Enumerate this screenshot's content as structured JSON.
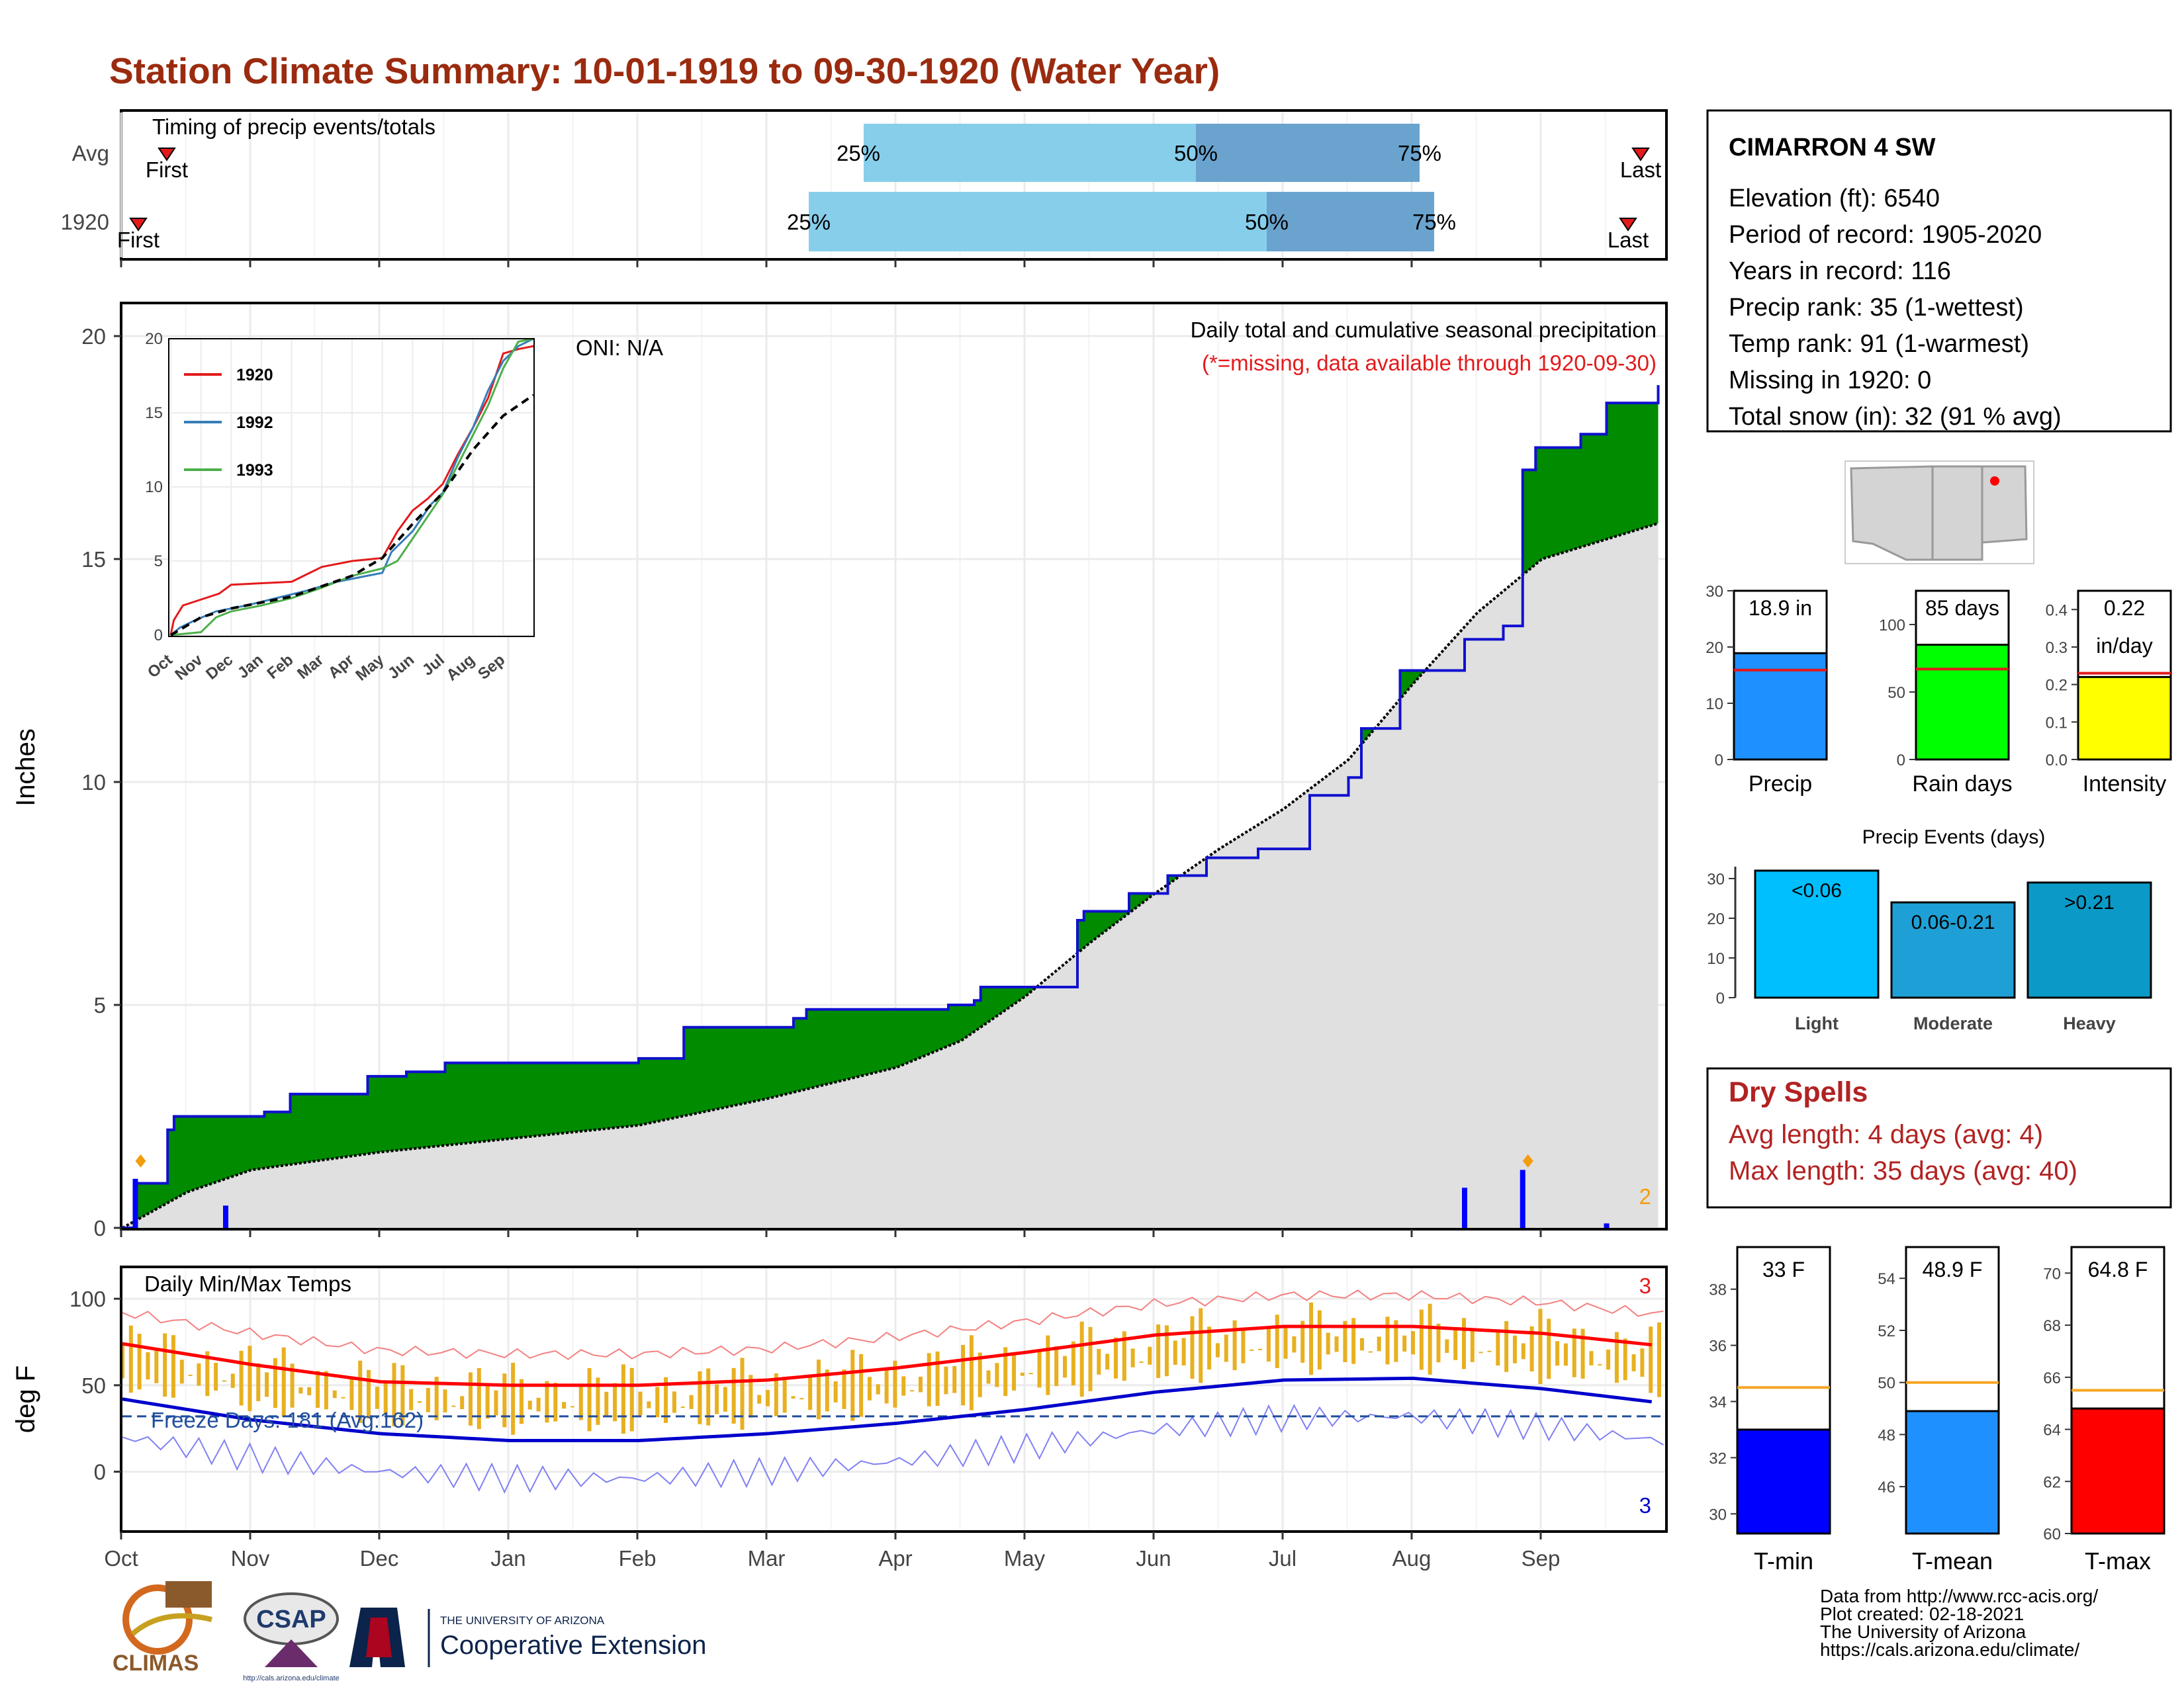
{
  "title": "Station Climate Summary: 10-01-1919 to 09-30-1920 (Water Year)",
  "months": [
    "Oct",
    "Nov",
    "Dec",
    "Jan",
    "Feb",
    "Mar",
    "Apr",
    "May",
    "Jun",
    "Jul",
    "Aug",
    "Sep"
  ],
  "timing": {
    "label": "Timing of precip events/totals",
    "rows": [
      {
        "name": "Avg",
        "first_label": "First",
        "last_label": "Last",
        "p25": "25%",
        "p50": "50%",
        "p75": "75%"
      },
      {
        "name": "1920",
        "first_label": "First",
        "last_label": "Last",
        "p25": "25%",
        "p50": "50%",
        "p75": "75%"
      }
    ]
  },
  "precip_panel": {
    "ylabel": "Inches",
    "oni": "ONI: N/A",
    "subtitle": "Daily total and cumulative seasonal precipitation",
    "missing_note": "(*=missing, data available through 1920-09-30)",
    "extreme_count": "2",
    "yticks": [
      "0",
      "5",
      "10",
      "15",
      "20"
    ]
  },
  "inset": {
    "months": [
      "Oct",
      "Nov",
      "Dec",
      "Jan",
      "Feb",
      "Mar",
      "Apr",
      "May",
      "Jun",
      "Jul",
      "Aug",
      "Sep"
    ],
    "yticks": [
      "0",
      "5",
      "10",
      "15",
      "20"
    ],
    "legend": [
      {
        "name": "1920",
        "color": "#e31a1c"
      },
      {
        "name": "1992",
        "color": "#377eb8"
      },
      {
        "name": "1993",
        "color": "#4daf4a"
      }
    ]
  },
  "temp_panel": {
    "ylabel": "deg F",
    "label": "Daily Min/Max Temps",
    "freeze_text": "Freeze Days: 181 (Avg:162)",
    "max_count": "3",
    "min_count": "3",
    "yticks": [
      "0",
      "50",
      "100"
    ]
  },
  "station": {
    "name": "CIMARRON 4 SW",
    "lines": [
      "Elevation (ft): 6540",
      "Period of record: 1905-2020",
      "Years in record: 116",
      "Precip rank: 35 (1-wettest)",
      "Temp rank: 91 (1-warmest)",
      "Missing in 1920: 0",
      "Total snow (in): 32 (91 % avg)"
    ]
  },
  "mini_bars": [
    {
      "name": "Precip",
      "value_label": "18.9 in",
      "value": 18.9,
      "avg": 15.9,
      "ymax": 30,
      "color": "#1e90ff",
      "yticks": [
        "0",
        "10",
        "20",
        "30"
      ]
    },
    {
      "name": "Rain days",
      "value_label": "85 days",
      "value": 85,
      "avg": 67,
      "ymax": 125,
      "color": "#00ff00",
      "yticks": [
        "0",
        "50",
        "100"
      ]
    },
    {
      "name": "Intensity",
      "value_label": "0.22",
      "value_label2": "in/day",
      "value": 0.22,
      "avg": 0.23,
      "ymax": 0.45,
      "color": "#ffff00",
      "yticks": [
        "0.0",
        "0.1",
        "0.2",
        "0.3",
        "0.4"
      ]
    }
  ],
  "events": {
    "title": "Precip Events (days)",
    "yticks": [
      "0",
      "10",
      "20",
      "30"
    ],
    "bars": [
      {
        "name": "Light",
        "label": "<0.06",
        "value": 32,
        "color": "#00bfff"
      },
      {
        "name": "Moderate",
        "label": "0.06-0.21",
        "value": 24,
        "color": "#1ea0d6"
      },
      {
        "name": "Heavy",
        "label": ">0.21",
        "value": 29,
        "color": "#0b9ac8"
      }
    ]
  },
  "dry_spells": {
    "title": "Dry Spells",
    "lines": [
      "Avg length: 4 days (avg: 4)",
      "Max length: 35 days (avg: 40)"
    ]
  },
  "temp_bars": [
    {
      "name": "T-min",
      "value_label": "33 F",
      "value": 33,
      "avg": 34.5,
      "ymin": 29.3,
      "ymax": 39.5,
      "color": "#0000ff",
      "yticks": [
        "30",
        "32",
        "34",
        "36",
        "38"
      ]
    },
    {
      "name": "T-mean",
      "value_label": "48.9 F",
      "value": 48.9,
      "avg": 50,
      "ymin": 44.2,
      "ymax": 55.2,
      "color": "#1e90ff",
      "yticks": [
        "46",
        "48",
        "50",
        "52",
        "54"
      ]
    },
    {
      "name": "T-max",
      "value_label": "64.8 F",
      "value": 64.8,
      "avg": 65.5,
      "ymin": 60,
      "ymax": 71,
      "color": "#ff0000",
      "yticks": [
        "60",
        "62",
        "64",
        "66",
        "68",
        "70"
      ]
    }
  ],
  "footer": {
    "lines": [
      "Data from http://www.rcc-acis.org/",
      "Plot created: 02-18-2021",
      "The University of Arizona",
      "https://cals.arizona.edu/climate/"
    ]
  },
  "logos": {
    "climas": "CLIMAS",
    "csap": "CSAP",
    "csap_url": "http://cals.arizona.edu/climate",
    "ua_top": "THE UNIVERSITY OF ARIZONA",
    "ua_bottom": "Cooperative Extension"
  },
  "chart_data": [
    {
      "type": "area",
      "title": "Daily total and cumulative seasonal precipitation",
      "ylabel": "Inches",
      "ylim": [
        0,
        20.5
      ],
      "x_unit": "month (water year, Oct=0)",
      "series": [
        {
          "name": "1920",
          "x": [
            0,
            0.1,
            0.18,
            0.35,
            0.4,
            1.1,
            1.3,
            1.9,
            2.2,
            2.5,
            3,
            3.5,
            4,
            4.35,
            4.5,
            5.2,
            5.3,
            5.5,
            6,
            6.4,
            6.6,
            6.65,
            7,
            7.4,
            7.45,
            7.8,
            8.1,
            8.4,
            8.8,
            9.2,
            9.5,
            9.6,
            9.9,
            10.4,
            10.7,
            10.85,
            10.95,
            11.3,
            11.5,
            11.9
          ],
          "y": [
            0,
            1.0,
            1.0,
            2.2,
            2.5,
            2.6,
            3.0,
            3.4,
            3.5,
            3.7,
            3.7,
            3.7,
            3.8,
            4.5,
            4.5,
            4.7,
            4.9,
            4.9,
            4.9,
            5.0,
            5.1,
            5.4,
            5.4,
            6.9,
            7.1,
            7.5,
            7.9,
            8.3,
            8.5,
            9.7,
            10.1,
            11.2,
            12.5,
            13.2,
            13.5,
            17.0,
            17.5,
            17.8,
            18.5,
            18.9
          ]
        },
        {
          "name": "Avg",
          "x": [
            0,
            0.5,
            1,
            2,
            3,
            4,
            5,
            6,
            6.5,
            7,
            7.5,
            8,
            8.5,
            9,
            9.5,
            10,
            10.5,
            11,
            11.9
          ],
          "y": [
            0,
            0.8,
            1.3,
            1.7,
            2.0,
            2.3,
            2.9,
            3.6,
            4.2,
            5.2,
            6.4,
            7.5,
            8.5,
            9.4,
            10.5,
            12.2,
            13.8,
            15.0,
            15.8
          ]
        }
      ],
      "daily_precip_in": [
        {
          "x": 0.1,
          "y": 1.1
        },
        {
          "x": 0.8,
          "y": 0.5
        },
        {
          "x": 10.4,
          "y": 0.9
        },
        {
          "x": 10.85,
          "y": 1.3
        },
        {
          "x": 11.5,
          "y": 0.1
        }
      ]
    },
    {
      "type": "line",
      "title": "Daily Min/Max Temps",
      "ylabel": "deg F",
      "ylim": [
        -30,
        110
      ],
      "series": [
        {
          "name": "Avg max",
          "x": [
            0,
            1,
            2,
            3,
            4,
            5,
            6,
            7,
            8,
            9,
            10,
            11,
            11.9
          ],
          "y": [
            74,
            62,
            52,
            50,
            50,
            53,
            60,
            69,
            79,
            84,
            84,
            80,
            73
          ]
        },
        {
          "name": "Avg min",
          "x": [
            0,
            1,
            2,
            3,
            4,
            5,
            6,
            7,
            8,
            9,
            10,
            11,
            11.9
          ],
          "y": [
            42,
            30,
            22,
            18,
            18,
            22,
            28,
            36,
            46,
            53,
            54,
            48,
            40
          ]
        }
      ],
      "freeze_threshold": 32
    }
  ]
}
